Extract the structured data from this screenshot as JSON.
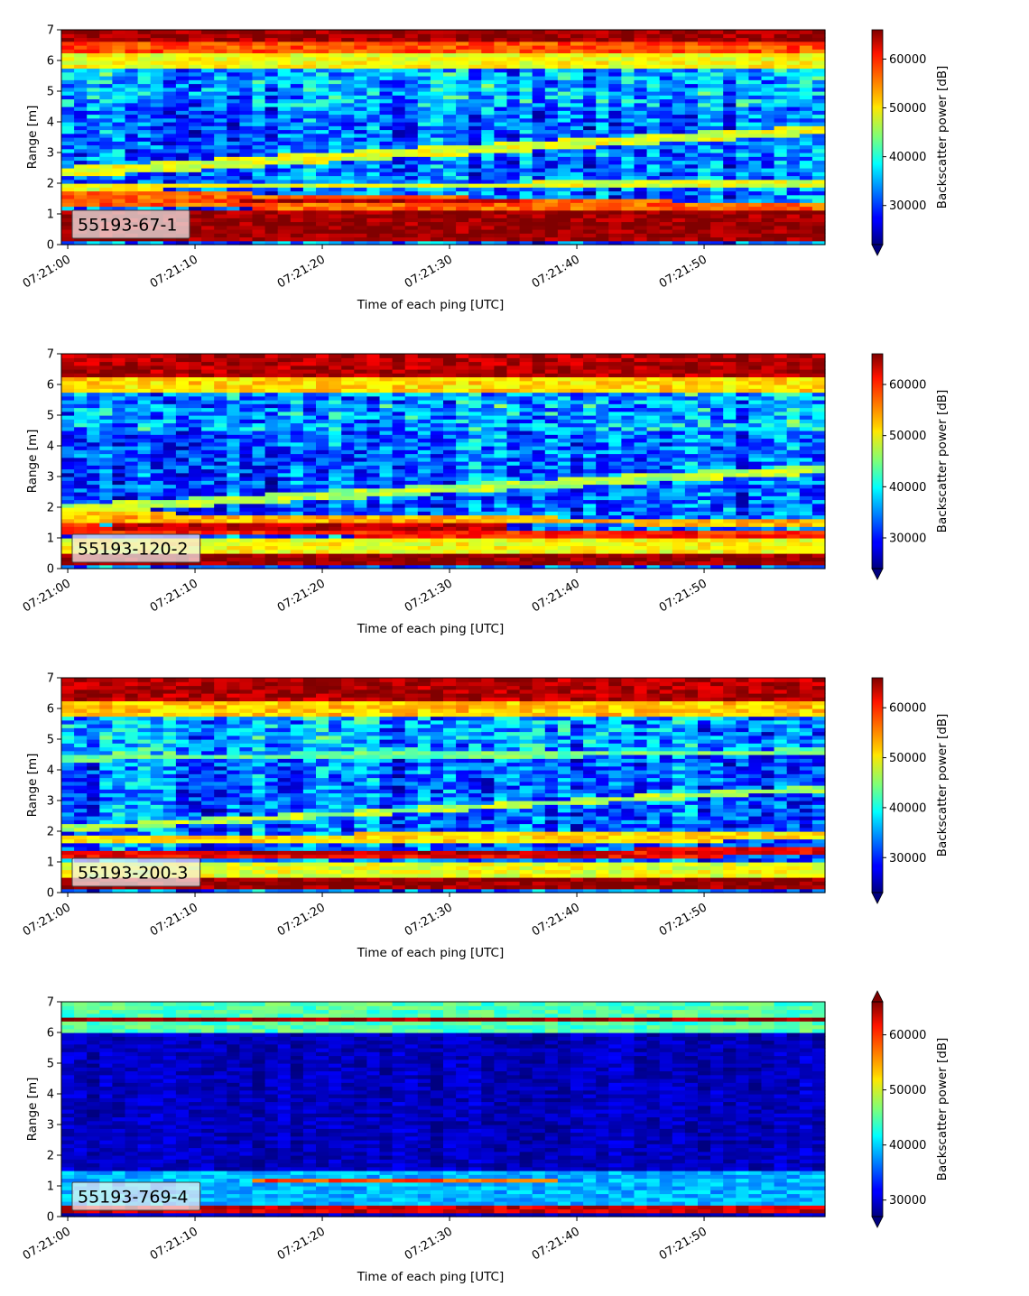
{
  "chart_data": [
    {
      "type": "heatmap",
      "label": "55193-67-1",
      "xlabel": "Time of each ping [UTC]",
      "ylabel": "Range [m]",
      "colorbar_label": "Backscatter power [dB]",
      "x_ticks": [
        "07:21:00",
        "07:21:10",
        "07:21:20",
        "07:21:30",
        "07:21:40",
        "07:21:50"
      ],
      "x_range_seconds": [
        -0.5,
        59.5
      ],
      "y_ticks": [
        0,
        1,
        2,
        3,
        4,
        5,
        6,
        7
      ],
      "ylim": [
        0,
        7
      ],
      "color_range": [
        22000,
        66000
      ],
      "colorbar_ticks": [
        30000,
        40000,
        50000,
        60000
      ],
      "colorbar_extend": "min",
      "colormap": "jet",
      "bands": [
        {
          "y0": 0.15,
          "y1": 1.15,
          "y0b": 0.15,
          "y1b": 1.15,
          "level": 0.98
        },
        {
          "y0": 1.2,
          "y1": 1.8,
          "y0b": 1.15,
          "y1b": 1.35,
          "level": 0.78
        },
        {
          "y0": 1.35,
          "y1": 1.55,
          "y0b": 1.35,
          "y1b": 1.55,
          "level": 0.95,
          "x0": 14,
          "x1": 35
        },
        {
          "y0": 1.8,
          "y1": 2.0,
          "y0b": 1.9,
          "y1b": 2.1,
          "level": 0.6
        },
        {
          "y0": 2.2,
          "y1": 2.55,
          "y0b": 3.6,
          "y1b": 3.9,
          "level": 0.6
        },
        {
          "y0": 5.8,
          "y1": 6.2,
          "y0b": 5.8,
          "y1b": 6.2,
          "level": 0.62
        },
        {
          "y0": 6.2,
          "y1": 6.6,
          "y0b": 6.2,
          "y1b": 6.6,
          "level": 0.8
        },
        {
          "y0": 6.6,
          "y1": 7.0,
          "y0b": 6.6,
          "y1b": 7.0,
          "level": 0.97
        }
      ]
    },
    {
      "type": "heatmap",
      "label": "55193-120-2",
      "xlabel": "Time of each ping [UTC]",
      "ylabel": "Range [m]",
      "colorbar_label": "Backscatter power [dB]",
      "x_ticks": [
        "07:21:00",
        "07:21:10",
        "07:21:20",
        "07:21:30",
        "07:21:40",
        "07:21:50"
      ],
      "x_range_seconds": [
        -0.5,
        59.5
      ],
      "y_ticks": [
        0,
        1,
        2,
        3,
        4,
        5,
        6,
        7
      ],
      "ylim": [
        0,
        7
      ],
      "color_range": [
        24000,
        66000
      ],
      "colorbar_ticks": [
        30000,
        40000,
        50000,
        60000
      ],
      "colorbar_extend": "min",
      "colormap": "jet",
      "bands": [
        {
          "y0": 0.1,
          "y1": 0.5,
          "y0b": 0.1,
          "y1b": 0.5,
          "level": 0.98
        },
        {
          "y0": 0.5,
          "y1": 1.0,
          "y0b": 0.5,
          "y1b": 1.0,
          "level": 0.62
        },
        {
          "y0": 1.1,
          "y1": 1.45,
          "y0b": 1.0,
          "y1b": 1.2,
          "level": 0.85
        },
        {
          "y0": 1.25,
          "y1": 1.45,
          "y0b": 1.25,
          "y1b": 1.45,
          "level": 0.93,
          "x0": 4,
          "x1": 34
        },
        {
          "y0": 1.55,
          "y1": 1.85,
          "y0b": 1.4,
          "y1b": 1.6,
          "level": 0.7
        },
        {
          "y0": 1.8,
          "y1": 2.1,
          "y0b": 3.1,
          "y1b": 3.4,
          "level": 0.55
        },
        {
          "y0": 5.8,
          "y1": 6.3,
          "y0b": 5.8,
          "y1b": 6.3,
          "level": 0.66
        },
        {
          "y0": 6.3,
          "y1": 7.0,
          "y0b": 6.3,
          "y1b": 7.0,
          "level": 0.95
        }
      ]
    },
    {
      "type": "heatmap",
      "label": "55193-200-3",
      "xlabel": "Time of each ping [UTC]",
      "ylabel": "Range [m]",
      "colorbar_label": "Backscatter power [dB]",
      "x_ticks": [
        "07:21:00",
        "07:21:10",
        "07:21:20",
        "07:21:30",
        "07:21:40",
        "07:21:50"
      ],
      "x_range_seconds": [
        -0.5,
        59.5
      ],
      "y_ticks": [
        0,
        1,
        2,
        3,
        4,
        5,
        6,
        7
      ],
      "ylim": [
        0,
        7
      ],
      "color_range": [
        23000,
        66000
      ],
      "colorbar_ticks": [
        30000,
        40000,
        50000,
        60000
      ],
      "colorbar_extend": "min",
      "colormap": "jet",
      "bands": [
        {
          "y0": 0.1,
          "y1": 0.5,
          "y0b": 0.1,
          "y1b": 0.5,
          "level": 0.98
        },
        {
          "y0": 0.5,
          "y1": 1.0,
          "y0b": 0.5,
          "y1b": 1.0,
          "level": 0.6
        },
        {
          "y0": 1.1,
          "y1": 1.4,
          "y0b": 1.2,
          "y1b": 1.45,
          "level": 0.88
        },
        {
          "y0": 1.2,
          "y1": 1.4,
          "y0b": 1.2,
          "y1b": 1.4,
          "level": 0.95,
          "x0": 14,
          "x1": 40
        },
        {
          "y0": 1.6,
          "y1": 1.9,
          "y0b": 1.7,
          "y1b": 2.0,
          "level": 0.65
        },
        {
          "y0": 2.0,
          "y1": 2.2,
          "y0b": 3.3,
          "y1b": 3.5,
          "level": 0.55
        },
        {
          "y0": 4.3,
          "y1": 4.5,
          "y0b": 4.5,
          "y1b": 4.7,
          "level": 0.48
        },
        {
          "y0": 5.8,
          "y1": 6.3,
          "y0b": 5.8,
          "y1b": 6.3,
          "level": 0.68
        },
        {
          "y0": 6.3,
          "y1": 7.0,
          "y0b": 6.3,
          "y1b": 7.0,
          "level": 0.95
        }
      ]
    },
    {
      "type": "heatmap",
      "label": "55193-769-4",
      "xlabel": "Time of each ping [UTC]",
      "ylabel": "Range [m]",
      "colorbar_label": "Backscatter power [dB]",
      "x_ticks": [
        "07:21:00",
        "07:21:10",
        "07:21:20",
        "07:21:30",
        "07:21:40",
        "07:21:50"
      ],
      "x_range_seconds": [
        -0.5,
        59.5
      ],
      "y_ticks": [
        0,
        1,
        2,
        3,
        4,
        5,
        6,
        7
      ],
      "ylim": [
        0,
        7
      ],
      "color_range": [
        27000,
        66000
      ],
      "colorbar_ticks": [
        30000,
        40000,
        50000,
        60000
      ],
      "colorbar_extend": "both",
      "colormap": "jet",
      "background_level": 0.06,
      "bands": [
        {
          "y0": 0.15,
          "y1": 0.35,
          "y0b": 0.15,
          "y1b": 0.35,
          "level": 0.92
        },
        {
          "y0": 0.35,
          "y1": 1.0,
          "y0b": 0.35,
          "y1b": 1.0,
          "level": 0.3
        },
        {
          "y0": 1.15,
          "y1": 1.3,
          "y0b": 1.15,
          "y1b": 1.3,
          "level": 0.8,
          "x0": 15,
          "x1": 38
        },
        {
          "y0": 1.0,
          "y1": 1.5,
          "y0b": 1.0,
          "y1b": 1.5,
          "level": 0.3
        },
        {
          "y0": 6.0,
          "y1": 6.35,
          "y0b": 6.0,
          "y1b": 6.35,
          "level": 0.45
        },
        {
          "y0": 6.35,
          "y1": 6.55,
          "y0b": 6.35,
          "y1b": 6.55,
          "level": 0.97
        },
        {
          "y0": 6.55,
          "y1": 7.0,
          "y0b": 6.55,
          "y1b": 7.0,
          "level": 0.45
        }
      ]
    }
  ]
}
